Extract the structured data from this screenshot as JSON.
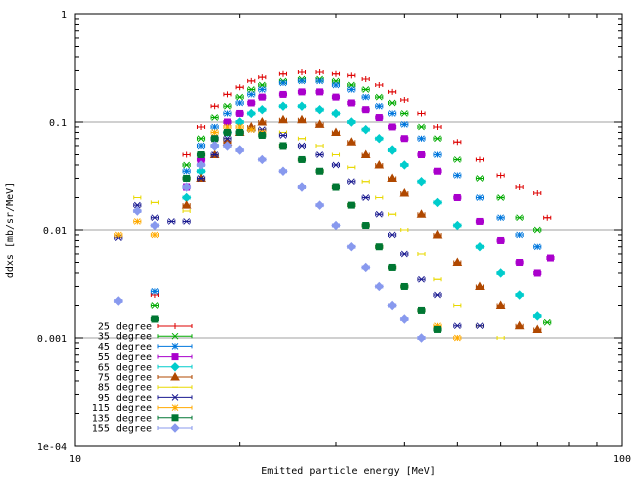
{
  "chart_data": {
    "type": "scatter",
    "title": "",
    "xlabel": "Emitted particle energy [MeV]",
    "ylabel": "ddxs [mb/sr/MeV]",
    "xscale": "log",
    "yscale": "log",
    "xlim": [
      10,
      100
    ],
    "ylim": [
      0.0001,
      1
    ],
    "grid": "horizontal at major y ticks",
    "legend_position": "bottom-left",
    "x_tick_labels": [
      "10",
      "100"
    ],
    "y_tick_labels": [
      "1e-04",
      "0.001",
      "0.01",
      "0.1",
      "1"
    ],
    "series": [
      {
        "name": "25 degree",
        "color": "#dd0000",
        "marker": "+",
        "x": [
          14,
          16,
          17,
          18,
          19,
          20,
          21,
          22,
          24,
          26,
          28,
          30,
          32,
          34,
          36,
          38,
          40,
          43,
          46,
          50,
          55,
          60,
          65,
          70,
          73
        ],
        "y": [
          0.0025,
          0.05,
          0.09,
          0.14,
          0.18,
          0.21,
          0.24,
          0.26,
          0.28,
          0.29,
          0.29,
          0.28,
          0.27,
          0.25,
          0.22,
          0.19,
          0.16,
          0.12,
          0.09,
          0.065,
          0.045,
          0.032,
          0.025,
          0.022,
          0.013
        ]
      },
      {
        "name": "35 degree",
        "color": "#00aa00",
        "marker": "x",
        "x": [
          14,
          16,
          17,
          18,
          19,
          20,
          21,
          22,
          24,
          26,
          28,
          30,
          32,
          34,
          36,
          38,
          40,
          43,
          46,
          50,
          55,
          60,
          65,
          70,
          73
        ],
        "y": [
          0.002,
          0.04,
          0.07,
          0.11,
          0.14,
          0.17,
          0.2,
          0.22,
          0.24,
          0.25,
          0.25,
          0.24,
          0.22,
          0.2,
          0.17,
          0.15,
          0.12,
          0.09,
          0.07,
          0.045,
          0.03,
          0.02,
          0.013,
          0.01,
          0.0014
        ]
      },
      {
        "name": "45 degree",
        "color": "#0077dd",
        "marker": "*",
        "x": [
          14,
          16,
          17,
          18,
          19,
          20,
          21,
          22,
          24,
          26,
          28,
          30,
          32,
          34,
          36,
          38,
          40,
          43,
          46,
          50,
          55,
          60,
          65,
          70
        ],
        "y": [
          0.0027,
          0.035,
          0.06,
          0.09,
          0.12,
          0.15,
          0.18,
          0.2,
          0.23,
          0.24,
          0.24,
          0.22,
          0.2,
          0.17,
          0.14,
          0.12,
          0.095,
          0.07,
          0.05,
          0.032,
          0.02,
          0.013,
          0.009,
          0.007
        ]
      },
      {
        "name": "55 degree",
        "color": "#aa00cc",
        "marker": "square",
        "x": [
          16,
          17,
          18,
          19,
          20,
          21,
          22,
          24,
          26,
          28,
          30,
          32,
          34,
          36,
          38,
          40,
          43,
          46,
          50,
          55,
          60,
          65,
          70,
          74
        ],
        "y": [
          0.025,
          0.045,
          0.07,
          0.1,
          0.12,
          0.15,
          0.17,
          0.18,
          0.19,
          0.19,
          0.17,
          0.15,
          0.13,
          0.11,
          0.09,
          0.07,
          0.05,
          0.035,
          0.02,
          0.012,
          0.008,
          0.005,
          0.004,
          0.0055
        ]
      },
      {
        "name": "65 degree",
        "color": "#00cccc",
        "marker": "diamond",
        "x": [
          16,
          17,
          18,
          19,
          20,
          21,
          22,
          24,
          26,
          28,
          30,
          32,
          34,
          36,
          38,
          40,
          43,
          46,
          50,
          55,
          60,
          65,
          70
        ],
        "y": [
          0.02,
          0.035,
          0.06,
          0.08,
          0.1,
          0.12,
          0.13,
          0.14,
          0.14,
          0.13,
          0.12,
          0.1,
          0.085,
          0.07,
          0.055,
          0.04,
          0.028,
          0.018,
          0.011,
          0.007,
          0.004,
          0.0025,
          0.0016
        ]
      },
      {
        "name": "75 degree",
        "color": "#b04800",
        "marker": "triangle",
        "x": [
          16,
          17,
          18,
          19,
          20,
          21,
          22,
          24,
          26,
          28,
          30,
          32,
          34,
          36,
          38,
          40,
          43,
          46,
          50,
          55,
          60,
          65,
          70
        ],
        "y": [
          0.017,
          0.03,
          0.05,
          0.065,
          0.08,
          0.09,
          0.1,
          0.105,
          0.105,
          0.095,
          0.08,
          0.065,
          0.05,
          0.04,
          0.03,
          0.022,
          0.014,
          0.009,
          0.005,
          0.003,
          0.002,
          0.0013,
          0.0012
        ]
      },
      {
        "name": "85 degree",
        "color": "#e8d800",
        "marker": "-",
        "x": [
          13,
          14,
          16,
          17,
          18,
          19,
          20,
          21,
          22,
          24,
          26,
          28,
          30,
          32,
          34,
          36,
          38,
          40,
          43,
          46,
          50,
          55,
          60
        ],
        "y": [
          0.02,
          0.018,
          0.015,
          0.03,
          0.05,
          0.07,
          0.08,
          0.085,
          0.085,
          0.08,
          0.07,
          0.06,
          0.05,
          0.038,
          0.028,
          0.02,
          0.014,
          0.01,
          0.006,
          0.0035,
          0.002,
          0.0013,
          0.001
        ]
      },
      {
        "name": "95 degree",
        "color": "#1a1a90",
        "marker": "x",
        "x": [
          12,
          13,
          14,
          15,
          16,
          17,
          18,
          19,
          20,
          21,
          22,
          24,
          26,
          28,
          30,
          32,
          34,
          36,
          38,
          40,
          43,
          46,
          50,
          55
        ],
        "y": [
          0.0085,
          0.017,
          0.013,
          0.012,
          0.012,
          0.03,
          0.05,
          0.07,
          0.08,
          0.085,
          0.085,
          0.075,
          0.06,
          0.05,
          0.04,
          0.028,
          0.02,
          0.014,
          0.009,
          0.006,
          0.0035,
          0.0025,
          0.0013,
          0.0013
        ]
      },
      {
        "name": "115 degree",
        "color": "#ffaa00",
        "marker": "*",
        "x": [
          12,
          13,
          14,
          16,
          17,
          18,
          19,
          20,
          21,
          22,
          24,
          26,
          28,
          30,
          32,
          34,
          36,
          38,
          40,
          43,
          46,
          50
        ],
        "y": [
          0.009,
          0.012,
          0.009,
          0.03,
          0.05,
          0.08,
          0.09,
          0.09,
          0.085,
          0.08,
          0.06,
          0.045,
          0.035,
          0.025,
          0.017,
          0.011,
          0.007,
          0.0045,
          0.003,
          0.0018,
          0.0013,
          0.001
        ]
      },
      {
        "name": "135 degree",
        "color": "#007733",
        "marker": "square",
        "x": [
          14,
          16,
          17,
          18,
          19,
          20,
          22,
          24,
          26,
          28,
          30,
          32,
          34,
          36,
          38,
          40,
          43,
          46
        ],
        "y": [
          0.0015,
          0.03,
          0.05,
          0.07,
          0.08,
          0.08,
          0.075,
          0.06,
          0.045,
          0.035,
          0.025,
          0.017,
          0.011,
          0.007,
          0.0045,
          0.003,
          0.0018,
          0.0012
        ]
      },
      {
        "name": "155 degree",
        "color": "#8899ee",
        "marker": "diamond",
        "x": [
          12,
          13,
          14,
          16,
          17,
          18,
          19,
          20,
          22,
          24,
          26,
          28,
          30,
          32,
          34,
          36,
          38,
          40,
          43
        ],
        "y": [
          0.0022,
          0.015,
          0.011,
          0.025,
          0.04,
          0.06,
          0.06,
          0.055,
          0.045,
          0.035,
          0.025,
          0.017,
          0.011,
          0.007,
          0.0045,
          0.003,
          0.002,
          0.0015,
          0.001
        ]
      }
    ]
  }
}
